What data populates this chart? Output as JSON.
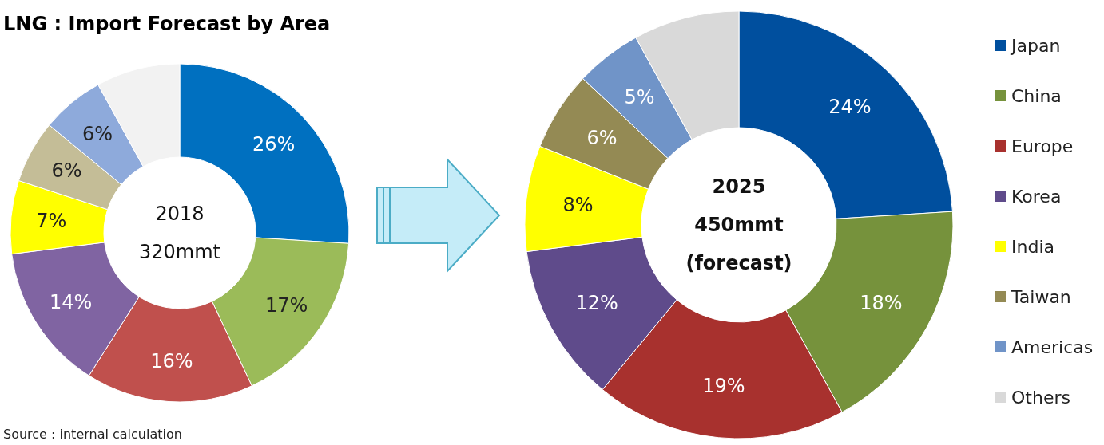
{
  "chart_data": [
    {
      "type": "donut",
      "title": "LNG : Import Forecast by Area",
      "categories": [
        null,
        null,
        null,
        null,
        null,
        null,
        null,
        null
      ],
      "values": [
        26,
        17,
        16,
        14,
        7,
        6,
        6,
        8
      ],
      "colors": [
        "#0070c0",
        "#9bbb59",
        "#c0504d",
        "#8064a2",
        "#ffff00",
        "#c4bd97",
        "#8eaadb",
        "#f2f2f2"
      ],
      "value_labels": [
        "26%",
        "17%",
        "16%",
        "14%",
        "7%",
        "6%",
        "6%",
        null
      ],
      "annotations": [
        "2018",
        "320mmt",
        "Source : internal calculation"
      ],
      "legend": false
    },
    {
      "type": "donut",
      "categories": [
        "Japan",
        "China",
        "Europe",
        "Korea",
        "India",
        "Taiwan",
        "Americas",
        "Others"
      ],
      "values": [
        24,
        18,
        19,
        12,
        8,
        6,
        5,
        8
      ],
      "colors": [
        "#004f9e",
        "#76923c",
        "#a8312e",
        "#5f4b8b",
        "#ffff00",
        "#948a54",
        "#7094c8",
        "#d9d9d9"
      ],
      "value_labels": [
        "24%",
        "18%",
        "19%",
        "12%",
        "8%",
        "6%",
        "5%",
        null
      ],
      "annotations": [
        "2025",
        "450mmt",
        "(forecast)"
      ],
      "legend": "right"
    }
  ]
}
